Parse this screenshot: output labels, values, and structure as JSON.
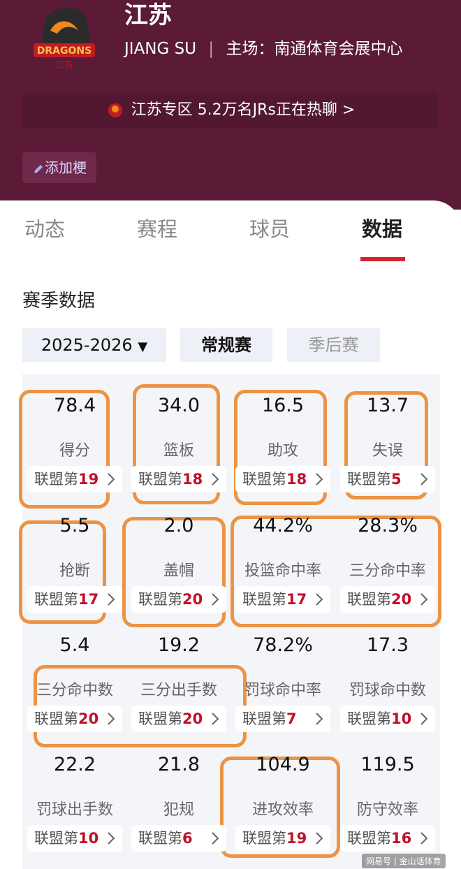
{
  "header": {
    "title": "江苏",
    "subtitle": "JIANG SU",
    "separator": "|",
    "home": "主场：南通体育会展中心"
  },
  "banner": {
    "text": "江苏专区 5.2万名JRs正在热聊 >"
  },
  "button": {
    "label": "添加梗"
  },
  "tabs": {
    "items": [
      "动态",
      "赛程",
      "球员",
      "数据"
    ],
    "active": 3
  },
  "section": {
    "title": "赛季数据"
  },
  "filters": {
    "season": "2025-2026",
    "regular": "常规赛",
    "playoff": "季后赛"
  },
  "stats": {
    "rank_prefix": "联盟第",
    "items": [
      {
        "value": "78.4",
        "label": "得分",
        "rank": 19
      },
      {
        "value": "34.0",
        "label": "篮板",
        "rank": 18
      },
      {
        "value": "16.5",
        "label": "助攻",
        "rank": 18
      },
      {
        "value": "13.7",
        "label": "失误",
        "rank": 5
      },
      {
        "value": "5.5",
        "label": "抢断",
        "rank": 17
      },
      {
        "value": "2.0",
        "label": "盖帽",
        "rank": 20
      },
      {
        "value": "44.2%",
        "label": "投篮命中率",
        "rank": 17
      },
      {
        "value": "28.3%",
        "label": "三分命中率",
        "rank": 20
      },
      {
        "value": "5.4",
        "label": "三分命中数",
        "rank": 20
      },
      {
        "value": "19.2",
        "label": "三分出手数",
        "rank": 20
      },
      {
        "value": "78.2%",
        "label": "罚球命中率",
        "rank": 7
      },
      {
        "value": "17.3",
        "label": "罚球命中数",
        "rank": 10
      },
      {
        "value": "22.2",
        "label": "罚球出手数",
        "rank": 10
      },
      {
        "value": "21.8",
        "label": "犯规",
        "rank": 6
      },
      {
        "value": "104.9",
        "label": "进攻效率",
        "rank": 19
      },
      {
        "value": "119.5",
        "label": "防守效率",
        "rank": 16
      }
    ]
  },
  "watermark": {
    "text": "网易号 | 金山话体育"
  }
}
